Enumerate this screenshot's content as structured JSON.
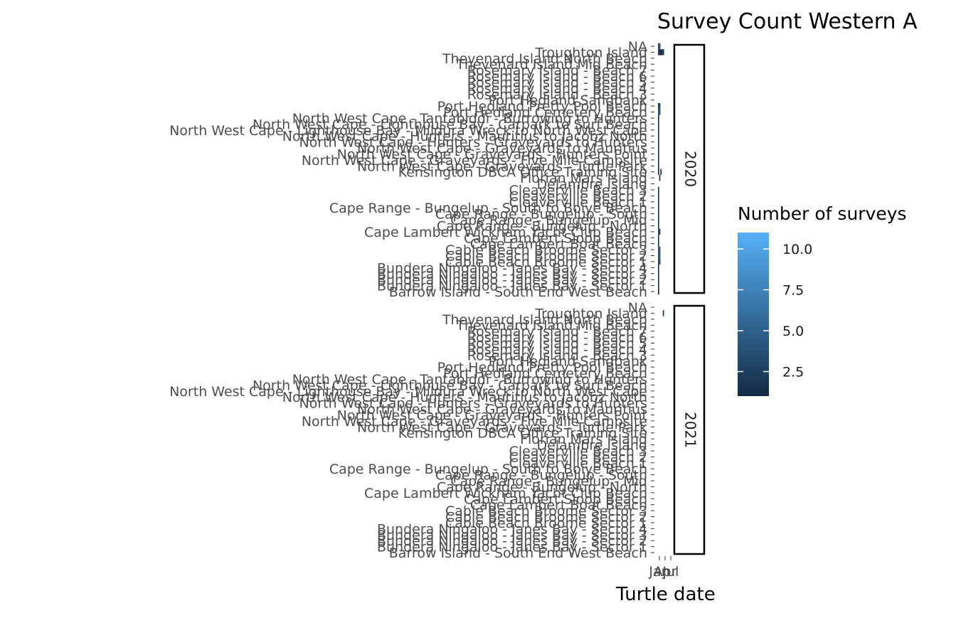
{
  "chart_data": {
    "type": "heatmap",
    "title": "Survey Count Western A",
    "xlabel": "Turtle date",
    "ylabel": "",
    "x_tick_labels": [
      "Jan",
      "Apr",
      "Jul"
    ],
    "panels": [
      "2020",
      "2021"
    ],
    "sites": [
      "Barrow Island - South End West Beach",
      "Bundera Ningaloo - Janes Bay - Sector 1",
      "Bundera Ningaloo - Janes Bay - Sector 2",
      "Bundera Ningaloo - Janes Bay - Sector 3",
      "Bundera Ningaloo - Janes Bay - Sector 4",
      "Cable Beach Broome Sector 1",
      "Cable Beach Broome Sector 2",
      "Cable Beach Broome Sector 3",
      "Cape Lambert Boat Beach",
      "Cape Lambert Sloop Beach",
      "Cape Lambert Wickham Yacht Club Beach",
      "Cape Range - Bungelup - North",
      "Cape Range - Bungelup - Mid",
      "Cape Range - Bungelup - South",
      "Cape Range - Bungelup - South to Boiye Beach",
      "Cleaverville Beach 1",
      "Cleaverville Beach 2",
      "Cleaverville Beach 3",
      "Delambre Island",
      "Florian Mars Island",
      "Kensington DBCA Office Training Site",
      "North West Cape - Graveyards - Turtle Park",
      "North West Cape - Graveyards - Five Mile Campsite",
      "North West Cape - Graveyards - Hunters Point",
      "North West Cape - Graveyards to Mauritius",
      "North West Cape - Hunters - Graveyards to Hunters",
      "North West Cape - Hunters - Mauritius to Jacobz North",
      "North West Cape - Lighthouse Bay - Mildura Wreck to North West Cape",
      "North West Cape - Lighthouse Bay - Carpark to Surf Beach",
      "North West Cape - Tantabiddi - Burrowing to Hunters",
      "Port Hedland Cemetery Beach",
      "Port Hedland Pretty Pool Beach",
      "Port Hedland Sandbank",
      "Rosemary Island - Beach 3",
      "Rosemary Island - Beach 4",
      "Rosemary Island - Beach 5",
      "Rosemary Island - Beach 6",
      "Rosemary Island - Beach 7",
      "Thevenard Island Mid Beach",
      "Thevenard Island North Beach",
      "Troughton Island",
      "NA"
    ],
    "color_scale": {
      "title": "Number of surveys",
      "min": 1,
      "max": 11,
      "low_color": "#132b43",
      "high_color": "#56b1f7",
      "tick_values": [
        2.5,
        5.0,
        7.5,
        10.0
      ],
      "tick_labels": [
        "2.5",
        "5.0",
        "7.5",
        "10.0"
      ]
    },
    "cells": [
      {
        "panel": "2020",
        "site": "NA",
        "month": 1,
        "value": 3
      },
      {
        "panel": "2020",
        "site": "NA",
        "month": 2,
        "value": 2
      },
      {
        "panel": "2020",
        "site": "Troughton Island",
        "month": 1,
        "value": 2
      },
      {
        "panel": "2020",
        "site": "Troughton Island",
        "month": 2,
        "value": 1
      },
      {
        "panel": "2020",
        "site": "Troughton Island",
        "month": 3,
        "value": 1
      },
      {
        "panel": "2020",
        "site": "Troughton Island",
        "month": 4,
        "value": 1
      },
      {
        "panel": "2020",
        "site": "Troughton Island",
        "month": 5,
        "value": 1
      },
      {
        "panel": "2020",
        "site": "Port Hedland Pretty Pool Beach",
        "month": 1,
        "value": 3
      },
      {
        "panel": "2020",
        "site": "Port Hedland Pretty Pool Beach",
        "month": 2,
        "value": 2
      },
      {
        "panel": "2020",
        "site": "Port Hedland Cemetery Beach",
        "month": 1,
        "value": 4
      },
      {
        "panel": "2020",
        "site": "Port Hedland Cemetery Beach",
        "month": 2,
        "value": 3
      },
      {
        "panel": "2020",
        "site": "North West Cape - Tantabiddi - Burrowing to Hunters",
        "month": 1,
        "value": 2
      },
      {
        "panel": "2020",
        "site": "North West Cape - Lighthouse Bay - Carpark to Surf Beach",
        "month": 1,
        "value": 2
      },
      {
        "panel": "2020",
        "site": "North West Cape - Lighthouse Bay - Mildura Wreck to North West Cape",
        "month": 1,
        "value": 2
      },
      {
        "panel": "2020",
        "site": "North West Cape - Hunters - Mauritius to Jacobz North",
        "month": 1,
        "value": 2
      },
      {
        "panel": "2020",
        "site": "North West Cape - Hunters - Graveyards to Hunters",
        "month": 1,
        "value": 2
      },
      {
        "panel": "2020",
        "site": "North West Cape - Graveyards to Mauritius",
        "month": 1,
        "value": 2
      },
      {
        "panel": "2020",
        "site": "North West Cape - Graveyards - Hunters Point",
        "month": 1,
        "value": 2
      },
      {
        "panel": "2020",
        "site": "North West Cape - Graveyards - Five Mile Campsite",
        "month": 1,
        "value": 2
      },
      {
        "panel": "2020",
        "site": "North West Cape - Graveyards - Turtle Park",
        "month": 1,
        "value": 2
      },
      {
        "panel": "2020",
        "site": "Kensington DBCA Office Training Site",
        "month": 1,
        "value": 1
      },
      {
        "panel": "2020",
        "site": "Kensington DBCA Office Training Site",
        "month": 3,
        "value": 1
      },
      {
        "panel": "2020",
        "site": "Florian Mars Island",
        "month": 2,
        "value": 1
      },
      {
        "panel": "2020",
        "site": "Cleaverville Beach 3",
        "month": 1,
        "value": 2
      },
      {
        "panel": "2020",
        "site": "Cleaverville Beach 2",
        "month": 1,
        "value": 2
      },
      {
        "panel": "2020",
        "site": "Cleaverville Beach 1",
        "month": 1,
        "value": 2
      },
      {
        "panel": "2020",
        "site": "Cape Range - Bungelup - South to Boiye Beach",
        "month": 1,
        "value": 2
      },
      {
        "panel": "2020",
        "site": "Cape Range - Bungelup - South",
        "month": 1,
        "value": 2
      },
      {
        "panel": "2020",
        "site": "Cape Range - Bungelup - Mid",
        "month": 1,
        "value": 2
      },
      {
        "panel": "2020",
        "site": "Cape Range - Bungelup - North",
        "month": 1,
        "value": 2
      },
      {
        "panel": "2020",
        "site": "Cape Lambert Wickham Yacht Club Beach",
        "month": 1,
        "value": 3
      },
      {
        "panel": "2020",
        "site": "Cape Lambert Wickham Yacht Club Beach",
        "month": 2,
        "value": 2
      },
      {
        "panel": "2020",
        "site": "Cape Lambert Sloop Beach",
        "month": 1,
        "value": 2
      },
      {
        "panel": "2020",
        "site": "Cape Lambert Boat Beach",
        "month": 1,
        "value": 2
      },
      {
        "panel": "2020",
        "site": "Cable Beach Broome Sector 3",
        "month": 1,
        "value": 4
      },
      {
        "panel": "2020",
        "site": "Cable Beach Broome Sector 3",
        "month": 2,
        "value": 3
      },
      {
        "panel": "2020",
        "site": "Cable Beach Broome Sector 2",
        "month": 1,
        "value": 4
      },
      {
        "panel": "2020",
        "site": "Cable Beach Broome Sector 2",
        "month": 2,
        "value": 3
      },
      {
        "panel": "2020",
        "site": "Cable Beach Broome Sector 1",
        "month": 1,
        "value": 3
      },
      {
        "panel": "2020",
        "site": "Cable Beach Broome Sector 1",
        "month": 2,
        "value": 2
      },
      {
        "panel": "2020",
        "site": "Bundera Ningaloo - Janes Bay - Sector 4",
        "month": 1,
        "value": 2
      },
      {
        "panel": "2020",
        "site": "Bundera Ningaloo - Janes Bay - Sector 3",
        "month": 1,
        "value": 2
      },
      {
        "panel": "2020",
        "site": "Bundera Ningaloo - Janes Bay - Sector 2",
        "month": 1,
        "value": 2
      },
      {
        "panel": "2020",
        "site": "Bundera Ningaloo - Janes Bay - Sector 1",
        "month": 1,
        "value": 2
      },
      {
        "panel": "2020",
        "site": "Barrow Island - South End West Beach",
        "month": 1,
        "value": 1
      },
      {
        "panel": "2021",
        "site": "Troughton Island",
        "month": 5,
        "value": 1
      }
    ]
  }
}
